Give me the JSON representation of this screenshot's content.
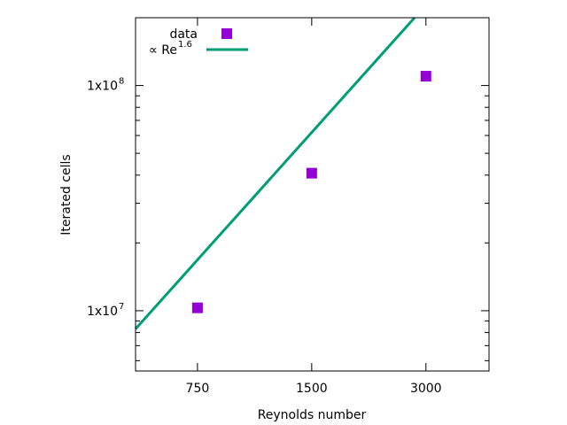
{
  "chart_data": {
    "type": "scatter",
    "title": "",
    "xlabel": "Reynolds number",
    "ylabel": "Iterated cells",
    "x_scale": "log",
    "y_scale": "log",
    "xlim": [
      515,
      4400
    ],
    "ylim": [
      5400000,
      200000000
    ],
    "x_ticks": [
      {
        "value": 750,
        "label": "750"
      },
      {
        "value": 1500,
        "label": "1500"
      },
      {
        "value": 3000,
        "label": "3000"
      }
    ],
    "y_ticks": [
      {
        "value": 10000000,
        "label": "1x10",
        "exp": "7"
      },
      {
        "value": 100000000,
        "label": "1x10",
        "exp": "8"
      }
    ],
    "grid": false,
    "legend": "top-left",
    "series": [
      {
        "name": "data",
        "kind": "points",
        "color": "#9400d3",
        "x": [
          750,
          1500,
          3000
        ],
        "y": [
          10300000,
          40800000,
          110000000
        ]
      },
      {
        "name": "∝ Re",
        "name_sup": "1.6",
        "kind": "line",
        "color": "#009e73",
        "exponent": 1.6,
        "x": [
          515,
          2800
        ],
        "y": [
          8300000,
          200000000
        ]
      }
    ]
  }
}
